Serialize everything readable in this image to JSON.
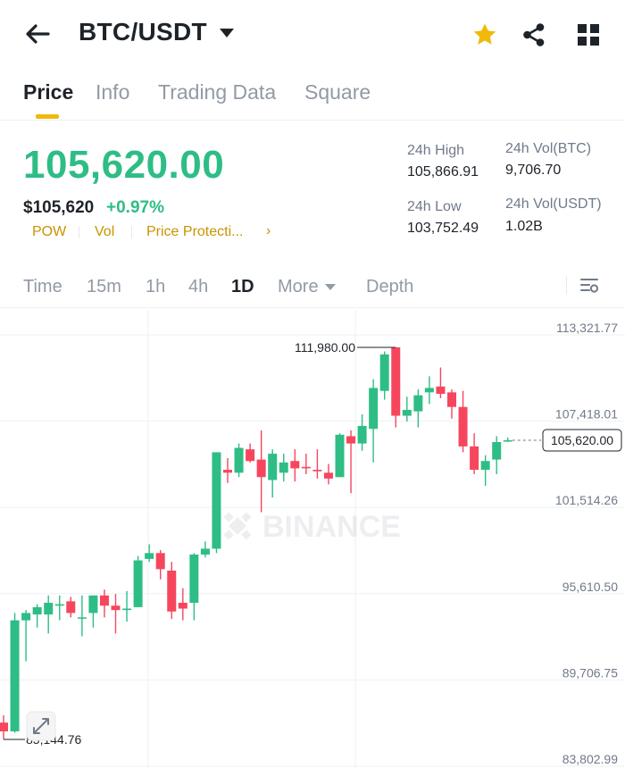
{
  "header": {
    "pair": "BTC/USDT",
    "icons": [
      "back-arrow-icon",
      "caret-down-icon",
      "star-icon",
      "share-icon",
      "grid-icon"
    ],
    "star_color": "#f0b90b"
  },
  "tabs": [
    {
      "label": "Price",
      "active": true
    },
    {
      "label": "Info",
      "active": false
    },
    {
      "label": "Trading Data",
      "active": false
    },
    {
      "label": "Square",
      "active": false
    }
  ],
  "price": {
    "last": "105,620.00",
    "usd": "$105,620",
    "change": "+0.97%",
    "tags": [
      "POW",
      "Vol",
      "Price Protecti..."
    ],
    "tag_chevron": "›"
  },
  "stats": {
    "high_label": "24h High",
    "high_value": "105,866.91",
    "vol_btc_label": "24h Vol(BTC)",
    "vol_btc_value": "9,706.70",
    "low_label": "24h Low",
    "low_value": "103,752.49",
    "vol_usdt_label": "24h Vol(USDT)",
    "vol_usdt_value": "1.02B"
  },
  "intervals": {
    "items": [
      "Time",
      "15m",
      "1h",
      "4h",
      "1D",
      "More",
      "Depth"
    ],
    "active": "1D"
  },
  "colors": {
    "up": "#2ebd85",
    "down": "#f6465d",
    "accent": "#f0b90b",
    "muted": "#929aa5"
  },
  "chart_data": {
    "type": "candlestick",
    "interval": "1D",
    "watermark": "BINANCE",
    "y_ticks": [
      "113,321.77",
      "107,418.01",
      "101,514.26",
      "95,610.50",
      "89,706.75",
      "83,802.99"
    ],
    "y_tick_values": [
      113321.77,
      107418.01,
      101514.26,
      95610.5,
      89706.75,
      83802.99
    ],
    "ylim": [
      83802.99,
      113321.77
    ],
    "last_price_label": "105,620.00",
    "last_price": 105620,
    "max_label": "111,980.00",
    "max_value": 111980,
    "min_label": "85,144.76",
    "min_value": 85144.76,
    "candles": [
      {
        "o": 86300,
        "h": 86800,
        "l": 85144.76,
        "c": 85700
      },
      {
        "o": 85700,
        "h": 93800,
        "l": 85600,
        "c": 93300
      },
      {
        "o": 93300,
        "h": 94000,
        "l": 90500,
        "c": 93800
      },
      {
        "o": 93700,
        "h": 94400,
        "l": 92800,
        "c": 94200
      },
      {
        "o": 93700,
        "h": 95000,
        "l": 92400,
        "c": 94500
      },
      {
        "o": 94300,
        "h": 95000,
        "l": 93300,
        "c": 94400
      },
      {
        "o": 94600,
        "h": 94900,
        "l": 93500,
        "c": 93800
      },
      {
        "o": 93500,
        "h": 95000,
        "l": 92200,
        "c": 93500
      },
      {
        "o": 93800,
        "h": 95000,
        "l": 92800,
        "c": 95000
      },
      {
        "o": 95000,
        "h": 95400,
        "l": 93500,
        "c": 94300
      },
      {
        "o": 94300,
        "h": 95100,
        "l": 92400,
        "c": 94000
      },
      {
        "o": 94000,
        "h": 95300,
        "l": 93200,
        "c": 94100
      },
      {
        "o": 94200,
        "h": 97700,
        "l": 94200,
        "c": 97400
      },
      {
        "o": 97500,
        "h": 98500,
        "l": 97300,
        "c": 97900
      },
      {
        "o": 97900,
        "h": 98100,
        "l": 96100,
        "c": 96800
      },
      {
        "o": 96700,
        "h": 97300,
        "l": 93400,
        "c": 93900
      },
      {
        "o": 94500,
        "h": 95500,
        "l": 93300,
        "c": 94100
      },
      {
        "o": 94500,
        "h": 97900,
        "l": 93300,
        "c": 97800
      },
      {
        "o": 97800,
        "h": 98700,
        "l": 97600,
        "c": 98200
      },
      {
        "o": 98200,
        "h": 104800,
        "l": 97900,
        "c": 104800
      },
      {
        "o": 103600,
        "h": 104400,
        "l": 102700,
        "c": 103400
      },
      {
        "o": 103400,
        "h": 105400,
        "l": 103100,
        "c": 105100
      },
      {
        "o": 105000,
        "h": 105400,
        "l": 104100,
        "c": 104200
      },
      {
        "o": 104300,
        "h": 106300,
        "l": 100700,
        "c": 103100
      },
      {
        "o": 102900,
        "h": 105000,
        "l": 101700,
        "c": 104700
      },
      {
        "o": 103400,
        "h": 104700,
        "l": 102800,
        "c": 104100
      },
      {
        "o": 104200,
        "h": 105000,
        "l": 102800,
        "c": 103700
      },
      {
        "o": 103800,
        "h": 104700,
        "l": 103300,
        "c": 103700
      },
      {
        "o": 103600,
        "h": 105000,
        "l": 103000,
        "c": 103500
      },
      {
        "o": 103400,
        "h": 104000,
        "l": 102600,
        "c": 103000
      },
      {
        "o": 103100,
        "h": 106100,
        "l": 103100,
        "c": 106000
      },
      {
        "o": 105900,
        "h": 106300,
        "l": 102000,
        "c": 105400
      },
      {
        "o": 105400,
        "h": 107400,
        "l": 104900,
        "c": 106600
      },
      {
        "o": 106400,
        "h": 109800,
        "l": 104100,
        "c": 109200
      },
      {
        "o": 109000,
        "h": 111700,
        "l": 108400,
        "c": 111500
      },
      {
        "o": 111980,
        "h": 111980,
        "l": 106500,
        "c": 107300
      },
      {
        "o": 107300,
        "h": 108600,
        "l": 106900,
        "c": 107700
      },
      {
        "o": 107600,
        "h": 109100,
        "l": 106500,
        "c": 108700
      },
      {
        "o": 108900,
        "h": 110000,
        "l": 108100,
        "c": 109200
      },
      {
        "o": 109300,
        "h": 110600,
        "l": 108500,
        "c": 108800
      },
      {
        "o": 108900,
        "h": 109100,
        "l": 107100,
        "c": 107900
      },
      {
        "o": 107900,
        "h": 109000,
        "l": 104800,
        "c": 105200
      },
      {
        "o": 105200,
        "h": 106100,
        "l": 103300,
        "c": 103600
      },
      {
        "o": 103600,
        "h": 104600,
        "l": 102500,
        "c": 104200
      },
      {
        "o": 104300,
        "h": 105900,
        "l": 103300,
        "c": 105500
      },
      {
        "o": 105620,
        "h": 105800,
        "l": 105500,
        "c": 105620
      }
    ]
  }
}
